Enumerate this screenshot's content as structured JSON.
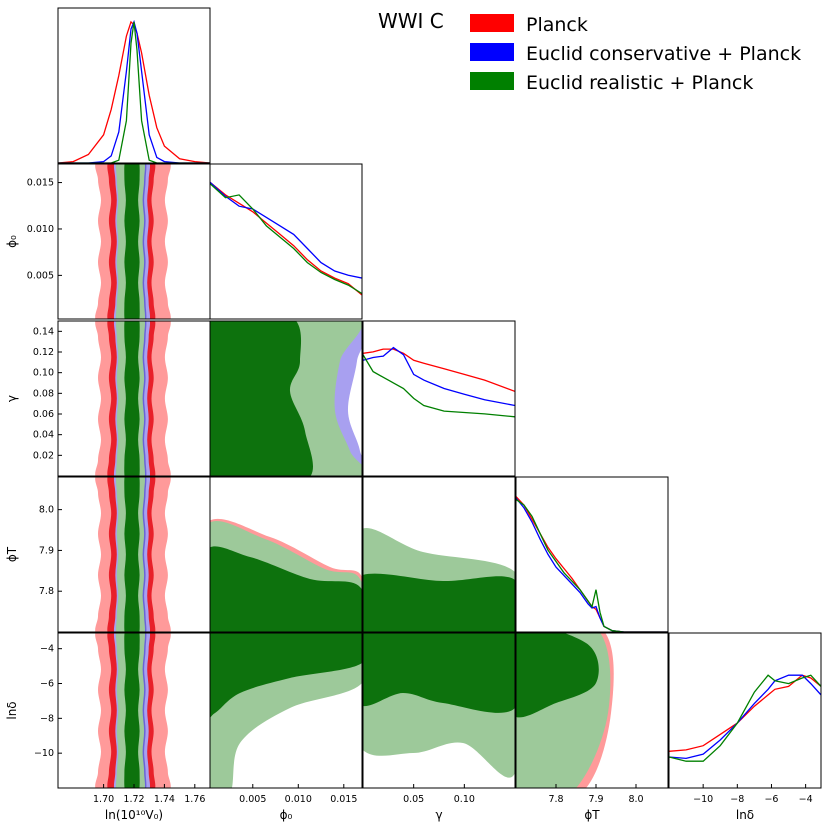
{
  "title": "WWI C",
  "legend": [
    {
      "label": "Planck",
      "color": "#ff0000"
    },
    {
      "label": "Euclid conservative + Planck",
      "color": "#0000ff"
    },
    {
      "label": "Euclid realistic + Planck",
      "color": "#008000"
    }
  ],
  "colors": {
    "planck_outer": "#ff9a9a",
    "planck_inner": "#e8202a",
    "cons_outer": "#a8a0f0",
    "cons_inner": "#6a63d8",
    "real_outer": "#9dc99a",
    "real_inner": "#0d720d"
  },
  "chart_data": {
    "type": "corner",
    "parameters": [
      {
        "id": "V0",
        "label": "ln(10¹⁰V₀)",
        "range": [
          1.67,
          1.77
        ],
        "ticks": [
          1.7,
          1.72,
          1.74,
          1.76
        ],
        "tick_labels": [
          "1.70",
          "1.72",
          "1.74",
          "1.76"
        ]
      },
      {
        "id": "phi0",
        "label": "ϕ₀",
        "range": [
          0.0003,
          0.017
        ],
        "ticks": [
          0.005,
          0.01,
          0.015
        ],
        "tick_labels": [
          "0.005",
          "0.010",
          "0.015"
        ]
      },
      {
        "id": "gamma",
        "label": "γ",
        "range": [
          0.0,
          0.15
        ],
        "ticks": [
          0.05,
          0.1
        ],
        "tick_labels": [
          "0.05",
          "0.10"
        ],
        "y_ticks": [
          0.02,
          0.04,
          0.06,
          0.08,
          0.1,
          0.12,
          0.14
        ],
        "y_tick_labels": [
          "0.02",
          "0.04",
          "0.06",
          "0.08",
          "0.10",
          "0.12",
          "0.14"
        ]
      },
      {
        "id": "phiT",
        "label": "ϕT",
        "range": [
          7.7,
          8.08
        ],
        "ticks": [
          7.8,
          7.9,
          8.0
        ],
        "tick_labels": [
          "7.8",
          "7.9",
          "8.0"
        ]
      },
      {
        "id": "lndelta",
        "label": "lnδ",
        "range": [
          -12.0,
          -3.1
        ],
        "ticks": [
          -10,
          -8,
          -6,
          -4
        ],
        "tick_labels": [
          "−10",
          "−8",
          "−6",
          "−4"
        ]
      }
    ],
    "y_labels": [
      "ϕ₀",
      "γ",
      "ϕT",
      "lnδ"
    ],
    "series": [
      "Planck",
      "Euclid conservative + Planck",
      "Euclid realistic + Planck"
    ],
    "marginals": {
      "V0": {
        "x": [
          1.67,
          1.68,
          1.69,
          1.7,
          1.705,
          1.71,
          1.715,
          1.718,
          1.72,
          1.722,
          1.725,
          1.73,
          1.735,
          1.74,
          1.75,
          1.76,
          1.77
        ],
        "Planck": [
          0.0,
          0.01,
          0.06,
          0.2,
          0.38,
          0.62,
          0.9,
          1.0,
          0.98,
          0.92,
          0.78,
          0.48,
          0.25,
          0.12,
          0.03,
          0.01,
          0.0
        ],
        "Euclid conservative + Planck": [
          0.0,
          0.0,
          0.0,
          0.01,
          0.05,
          0.22,
          0.65,
          0.95,
          1.0,
          0.92,
          0.65,
          0.2,
          0.04,
          0.01,
          0.0,
          0.0,
          0.0
        ],
        "Euclid realistic + Planck": [
          0.0,
          0.0,
          0.0,
          0.0,
          0.0,
          0.02,
          0.3,
          0.85,
          1.0,
          0.8,
          0.3,
          0.02,
          0.0,
          0.0,
          0.0,
          0.0,
          0.0
        ]
      },
      "phi0": {
        "x": [
          0.0003,
          0.002,
          0.0035,
          0.005,
          0.0065,
          0.008,
          0.0095,
          0.011,
          0.0125,
          0.014,
          0.0155,
          0.017
        ],
        "Planck": [
          0.97,
          0.88,
          0.82,
          0.76,
          0.68,
          0.6,
          0.52,
          0.42,
          0.34,
          0.29,
          0.25,
          0.17
        ],
        "Euclid conservative + Planck": [
          0.97,
          0.87,
          0.8,
          0.78,
          0.72,
          0.66,
          0.6,
          0.5,
          0.4,
          0.34,
          0.31,
          0.29
        ],
        "Euclid realistic + Planck": [
          0.96,
          0.86,
          0.88,
          0.78,
          0.66,
          0.58,
          0.5,
          0.4,
          0.33,
          0.28,
          0.24,
          0.18
        ]
      },
      "gamma": {
        "x": [
          0.0,
          0.01,
          0.02,
          0.03,
          0.04,
          0.05,
          0.06,
          0.08,
          0.1,
          0.12,
          0.15
        ],
        "Planck": [
          0.87,
          0.88,
          0.9,
          0.9,
          0.87,
          0.82,
          0.8,
          0.76,
          0.72,
          0.68,
          0.6
        ],
        "Euclid conservative + Planck": [
          0.82,
          0.84,
          0.85,
          0.91,
          0.86,
          0.72,
          0.68,
          0.62,
          0.58,
          0.54,
          0.5
        ],
        "Euclid realistic + Planck": [
          0.86,
          0.74,
          0.7,
          0.66,
          0.62,
          0.55,
          0.5,
          0.46,
          0.45,
          0.44,
          0.42
        ]
      },
      "phiT": {
        "x": [
          7.7,
          7.72,
          7.74,
          7.76,
          7.78,
          7.8,
          7.82,
          7.84,
          7.86,
          7.88,
          7.89,
          7.9,
          7.91,
          7.92,
          7.94,
          7.97,
          8.0,
          8.08
        ],
        "Planck": [
          0.96,
          0.9,
          0.8,
          0.7,
          0.6,
          0.52,
          0.45,
          0.38,
          0.3,
          0.22,
          0.18,
          0.16,
          0.1,
          0.04,
          0.01,
          0.0,
          0.0,
          0.0
        ],
        "Euclid conservative + Planck": [
          0.95,
          0.88,
          0.78,
          0.66,
          0.55,
          0.46,
          0.4,
          0.34,
          0.28,
          0.2,
          0.17,
          0.18,
          0.1,
          0.04,
          0.01,
          0.0,
          0.0,
          0.0
        ],
        "Euclid realistic + Planck": [
          0.94,
          0.9,
          0.82,
          0.7,
          0.58,
          0.5,
          0.42,
          0.36,
          0.3,
          0.22,
          0.18,
          0.3,
          0.14,
          0.04,
          0.01,
          0.0,
          0.0,
          0.0
        ]
      },
      "lndelta": {
        "x": [
          -12.0,
          -11.0,
          -10.0,
          -9.0,
          -8.0,
          -7.0,
          -6.2,
          -5.8,
          -5.0,
          -4.2,
          -3.7,
          -3.1
        ],
        "Planck": [
          0.26,
          0.27,
          0.3,
          0.38,
          0.46,
          0.58,
          0.66,
          0.7,
          0.72,
          0.8,
          0.78,
          0.72
        ],
        "Euclid conservative + Planck": [
          0.22,
          0.21,
          0.24,
          0.34,
          0.46,
          0.6,
          0.7,
          0.76,
          0.8,
          0.8,
          0.74,
          0.66
        ],
        "Euclid realistic + Planck": [
          0.22,
          0.19,
          0.19,
          0.3,
          0.46,
          0.68,
          0.8,
          0.76,
          0.74,
          0.78,
          0.8,
          0.72
        ]
      }
    },
    "panel_notes": "2D panels show filled 68% (dark) and 95% (light) credible contours for each series; realistic (green) drawn on top."
  }
}
